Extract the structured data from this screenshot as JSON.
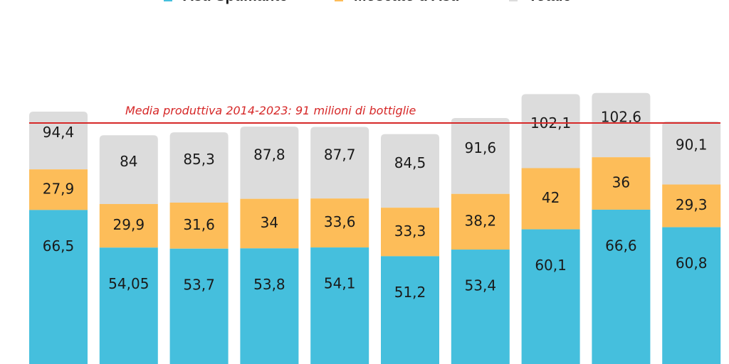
{
  "chart_data": {
    "type": "bar",
    "stacked": true,
    "title": "",
    "xlabel": "",
    "ylabel": "",
    "legend_position": "top",
    "categories": [
      "",
      "",
      "",
      "",
      "",
      "",
      "",
      "",
      "",
      ""
    ],
    "series": [
      {
        "name": "Asti Spumante",
        "color": "#45bfdd",
        "values": [
          66.5,
          54.05,
          53.7,
          53.8,
          54.1,
          51.2,
          53.4,
          60.1,
          66.6,
          60.8
        ],
        "labels": [
          "66,5",
          "54,05",
          "53,7",
          "53,8",
          "54,1",
          "51,2",
          "53,4",
          "60,1",
          "66,6",
          "60,8"
        ]
      },
      {
        "name": "Moscato d'Asti",
        "color": "#fdbd59",
        "values": [
          27.9,
          29.9,
          31.6,
          34,
          33.6,
          33.3,
          38.2,
          42,
          36,
          29.3
        ],
        "labels": [
          "27,9",
          "29,9",
          "31,6",
          "34",
          "33,6",
          "33,3",
          "38,2",
          "42",
          "36",
          "29,3"
        ]
      },
      {
        "name": "Totale",
        "color": "#dcdcdc",
        "values": [
          94.4,
          84,
          85.3,
          87.8,
          87.7,
          84.5,
          91.6,
          102.1,
          102.6,
          90.1
        ],
        "labels": [
          "94,4",
          "84",
          "85,3",
          "87,8",
          "87,7",
          "84,5",
          "91,6",
          "102,1",
          "102,6",
          "90,1"
        ]
      }
    ],
    "reference_line": {
      "value": 91,
      "label": "Media produttiva 2014-2023: 91 milioni di bottiglie",
      "color": "#d62828"
    }
  }
}
